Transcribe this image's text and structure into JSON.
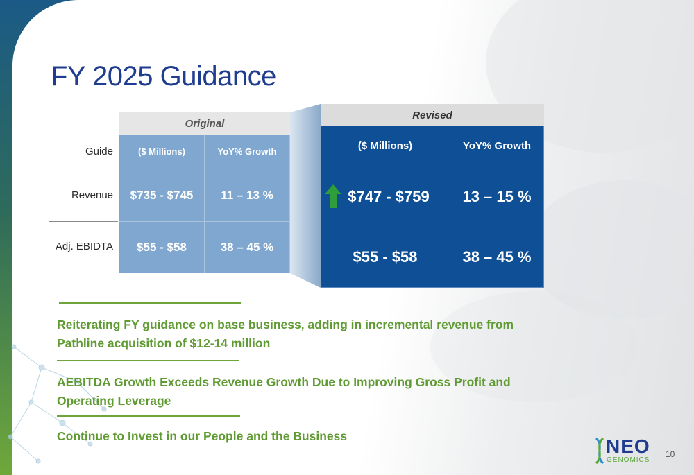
{
  "slide": {
    "title": "FY 2025 Guidance",
    "page_number": "10"
  },
  "original": {
    "header": "Original",
    "guide_label": "Guide",
    "col1": "($ Millions)",
    "col2": "YoY% Growth",
    "rows": [
      {
        "label": "Revenue",
        "value": "$735 - $745",
        "growth": "11 – 13 %"
      },
      {
        "label": "Adj. EBIDTA",
        "value": "$55 - $58",
        "growth": "38 – 45 %"
      }
    ]
  },
  "revised": {
    "header": "Revised",
    "col1": "($ Millions)",
    "col2": "YoY% Growth",
    "rows": [
      {
        "value": "$747 - $759",
        "growth": "13 – 15 %",
        "indicator": "up-arrow-icon"
      },
      {
        "value": "$55 - $58",
        "growth": "38 – 45 %"
      }
    ]
  },
  "bullets": [
    "Reiterating FY guidance on base business, adding in incremental revenue from Pathline acquisition of $12-14 million",
    "AEBITDA Growth Exceeds Revenue Growth Due to Improving Gross Profit and Operating Leverage",
    "Continue to Invest in our People and the Business"
  ],
  "logo": {
    "name": "NEO",
    "sub": "GENOMICS"
  },
  "colors": {
    "title": "#1f3c8f",
    "original_cell": "#7fa7cf",
    "revised_cell": "#0f4f96",
    "accent_green": "#6ea43b",
    "arrow_green": "#2f9e3a"
  }
}
